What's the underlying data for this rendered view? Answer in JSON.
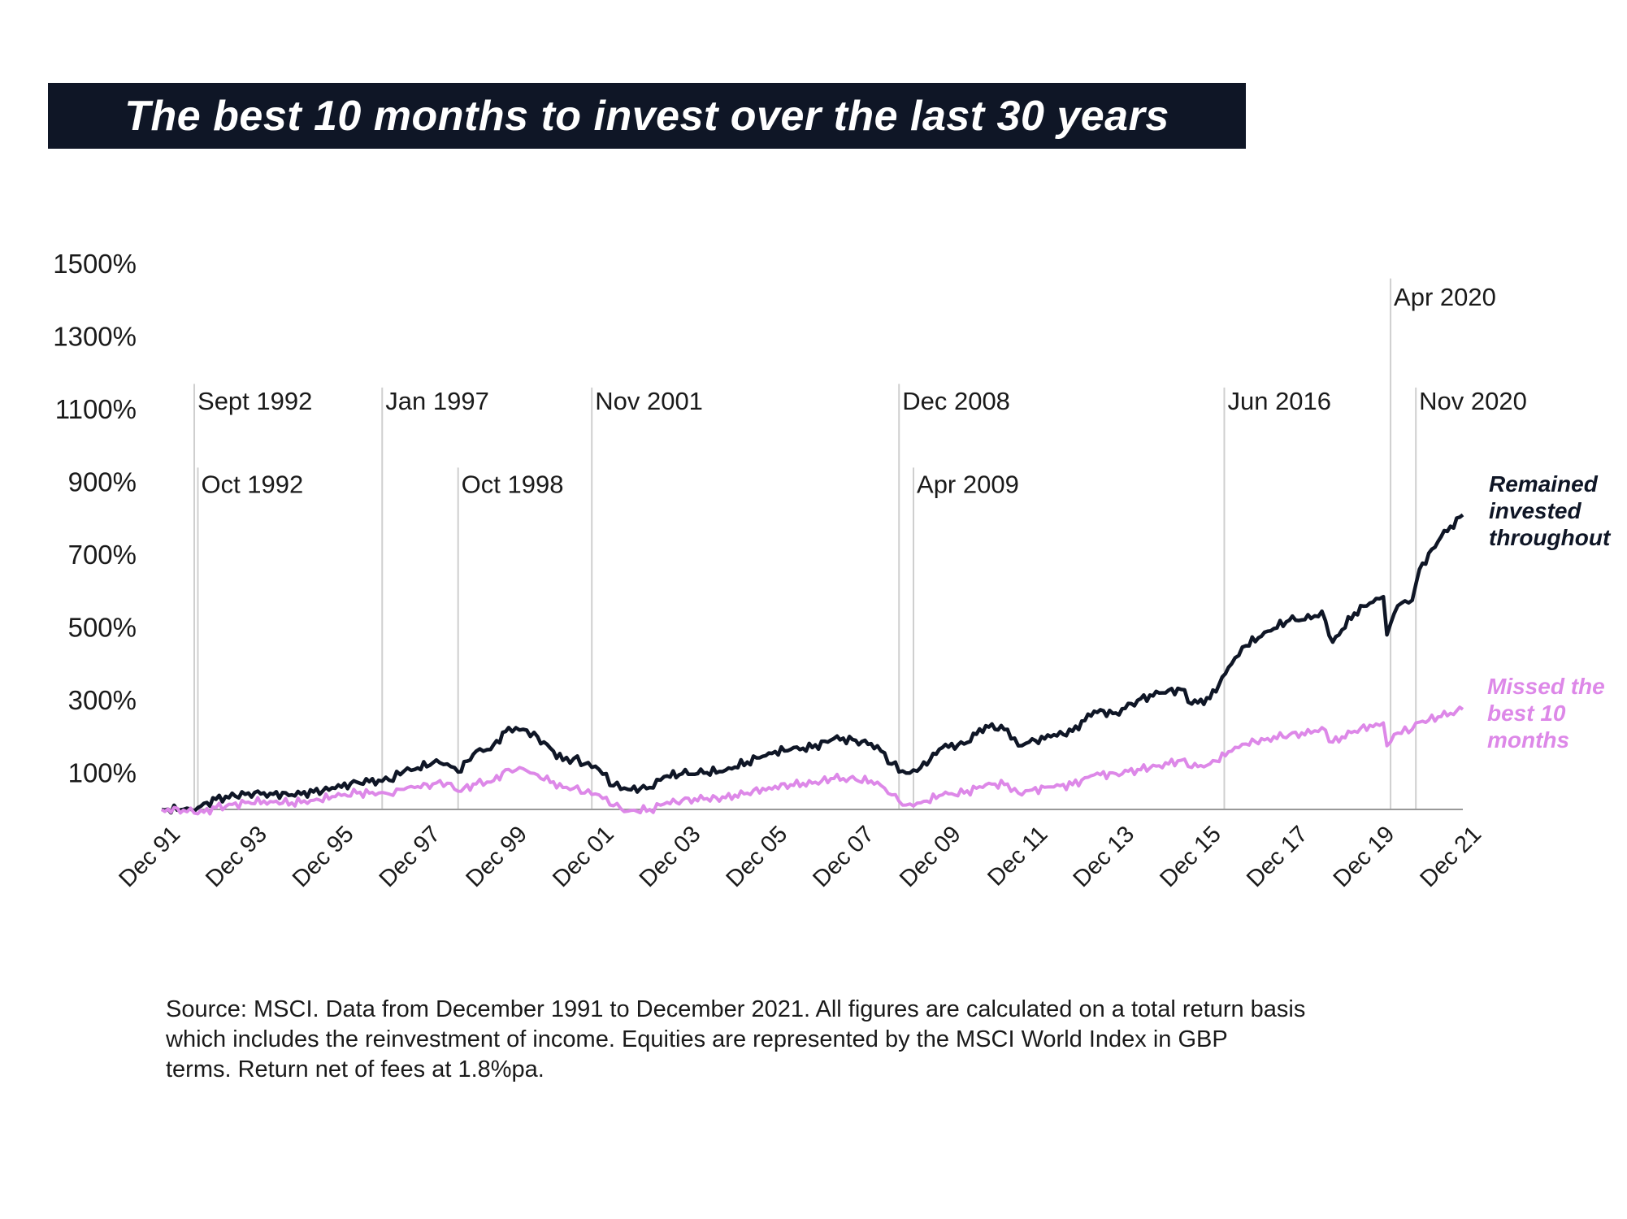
{
  "colors": {
    "title_bg": "#0f1626",
    "title_text": "#ffffff",
    "remained": "#0f1626",
    "missed": "#dd88e8",
    "event_line": "#cfcfcf",
    "axis": "#999999",
    "text": "#1a1a1a"
  },
  "chart_data": {
    "type": "line",
    "title": "The best 10 months to invest over the last 30 years",
    "xlabel": "",
    "ylabel": "",
    "xlim": [
      "1991-12",
      "2021-12"
    ],
    "ylim": [
      0,
      1500
    ],
    "y_tick_values": [
      100,
      300,
      500,
      700,
      900,
      1100,
      1300,
      1500
    ],
    "y_tick_labels": [
      "100%",
      "300%",
      "500%",
      "700%",
      "900%",
      "1100%",
      "1300%",
      "1500%"
    ],
    "x_ticks": [
      {
        "date": "1991-12",
        "label": "Dec 91"
      },
      {
        "date": "1993-12",
        "label": "Dec 93"
      },
      {
        "date": "1995-12",
        "label": "Dec 95"
      },
      {
        "date": "1997-12",
        "label": "Dec 97"
      },
      {
        "date": "1999-12",
        "label": "Dec 99"
      },
      {
        "date": "2001-12",
        "label": "Dec 01"
      },
      {
        "date": "2003-12",
        "label": "Dec 03"
      },
      {
        "date": "2005-12",
        "label": "Dec 05"
      },
      {
        "date": "2007-12",
        "label": "Dec 07"
      },
      {
        "date": "2009-12",
        "label": "Dec 09"
      },
      {
        "date": "2011-12",
        "label": "Dec 11"
      },
      {
        "date": "2013-12",
        "label": "Dec 13"
      },
      {
        "date": "2015-12",
        "label": "Dec 15"
      },
      {
        "date": "2017-12",
        "label": "Dec 17"
      },
      {
        "date": "2019-12",
        "label": "Dec 19"
      },
      {
        "date": "2021-12",
        "label": "Dec 21"
      }
    ],
    "grid": false,
    "legend": "right",
    "annotations": [
      {
        "date": "1992-09",
        "label": "Sept 1992",
        "y_top": 1170,
        "text_y": 1100
      },
      {
        "date": "1992-10",
        "label": "Oct 1992",
        "y_top": 940,
        "text_y": 870
      },
      {
        "date": "1997-01",
        "label": "Jan 1997",
        "y_top": 1160,
        "text_y": 1100
      },
      {
        "date": "1998-10",
        "label": "Oct 1998",
        "y_top": 940,
        "text_y": 870
      },
      {
        "date": "2001-11",
        "label": "Nov 2001",
        "y_top": 1160,
        "text_y": 1100
      },
      {
        "date": "2008-12",
        "label": "Dec 2008",
        "y_top": 1170,
        "text_y": 1100
      },
      {
        "date": "2009-04",
        "label": "Apr 2009",
        "y_top": 940,
        "text_y": 870
      },
      {
        "date": "2016-06",
        "label": "Jun 2016",
        "y_top": 1160,
        "text_y": 1100
      },
      {
        "date": "2020-04",
        "label": "Apr 2020",
        "y_top": 1460,
        "text_y": 1385
      },
      {
        "date": "2020-11",
        "label": "Nov 2020",
        "y_top": 1160,
        "text_y": 1100
      }
    ],
    "series": [
      {
        "name": "Remained invested throughout",
        "color": "#0f1626",
        "points": [
          [
            "1991-12",
            0
          ],
          [
            "1992-06",
            0
          ],
          [
            "1992-09",
            -5
          ],
          [
            "1992-10",
            5
          ],
          [
            "1993-03",
            28
          ],
          [
            "1993-12",
            45
          ],
          [
            "1994-06",
            44
          ],
          [
            "1994-12",
            40
          ],
          [
            "1995-06",
            48
          ],
          [
            "1995-12",
            58
          ],
          [
            "1996-06",
            75
          ],
          [
            "1996-12",
            80
          ],
          [
            "1997-03",
            80
          ],
          [
            "1997-07",
            105
          ],
          [
            "1997-10",
            110
          ],
          [
            "1998-03",
            128
          ],
          [
            "1998-07",
            125
          ],
          [
            "1998-10",
            103
          ],
          [
            "1999-03",
            160
          ],
          [
            "1999-07",
            165
          ],
          [
            "1999-12",
            225
          ],
          [
            "2000-04",
            220
          ],
          [
            "2000-08",
            200
          ],
          [
            "2001-03",
            135
          ],
          [
            "2001-06",
            140
          ],
          [
            "2001-09",
            125
          ],
          [
            "2002-01",
            110
          ],
          [
            "2002-05",
            65
          ],
          [
            "2002-09",
            55
          ],
          [
            "2003-03",
            60
          ],
          [
            "2003-07",
            90
          ],
          [
            "2003-12",
            98
          ],
          [
            "2004-06",
            100
          ],
          [
            "2004-12",
            108
          ],
          [
            "2005-06",
            130
          ],
          [
            "2005-12",
            155
          ],
          [
            "2006-06",
            165
          ],
          [
            "2006-12",
            170
          ],
          [
            "2007-06",
            195
          ],
          [
            "2007-12",
            190
          ],
          [
            "2008-06",
            175
          ],
          [
            "2008-10",
            125
          ],
          [
            "2009-02",
            100
          ],
          [
            "2009-06",
            115
          ],
          [
            "2009-12",
            170
          ],
          [
            "2010-06",
            180
          ],
          [
            "2010-12",
            230
          ],
          [
            "2011-06",
            220
          ],
          [
            "2011-09",
            175
          ],
          [
            "2011-12",
            185
          ],
          [
            "2012-06",
            200
          ],
          [
            "2012-12",
            215
          ],
          [
            "2013-06",
            270
          ],
          [
            "2013-12",
            265
          ],
          [
            "2014-06",
            300
          ],
          [
            "2014-12",
            320
          ],
          [
            "2015-06",
            330
          ],
          [
            "2015-09",
            290
          ],
          [
            "2016-02",
            305
          ],
          [
            "2016-08",
            400
          ],
          [
            "2016-12",
            450
          ],
          [
            "2017-06",
            490
          ],
          [
            "2017-12",
            520
          ],
          [
            "2018-06",
            525
          ],
          [
            "2018-09",
            545
          ],
          [
            "2018-12",
            460
          ],
          [
            "2019-06",
            540
          ],
          [
            "2019-12",
            580
          ],
          [
            "2020-02",
            585
          ],
          [
            "2020-03",
            480
          ],
          [
            "2020-06",
            560
          ],
          [
            "2020-10",
            575
          ],
          [
            "2020-12",
            660
          ],
          [
            "2021-06",
            750
          ],
          [
            "2021-12",
            810
          ]
        ]
      },
      {
        "name": "Missed the best 10 months",
        "color": "#dd88e8",
        "points": [
          [
            "1991-12",
            0
          ],
          [
            "1992-06",
            -2
          ],
          [
            "1992-09",
            -10
          ],
          [
            "1992-10",
            -12
          ],
          [
            "1993-03",
            5
          ],
          [
            "1993-12",
            20
          ],
          [
            "1994-06",
            22
          ],
          [
            "1994-12",
            18
          ],
          [
            "1995-06",
            25
          ],
          [
            "1995-12",
            35
          ],
          [
            "1996-06",
            45
          ],
          [
            "1996-12",
            45
          ],
          [
            "1997-03",
            42
          ],
          [
            "1997-07",
            55
          ],
          [
            "1997-10",
            60
          ],
          [
            "1998-03",
            70
          ],
          [
            "1998-07",
            72
          ],
          [
            "1998-10",
            50
          ],
          [
            "1999-03",
            70
          ],
          [
            "1999-07",
            75
          ],
          [
            "1999-12",
            110
          ],
          [
            "2000-04",
            112
          ],
          [
            "2000-08",
            95
          ],
          [
            "2001-03",
            60
          ],
          [
            "2001-06",
            58
          ],
          [
            "2001-09",
            45
          ],
          [
            "2002-01",
            40
          ],
          [
            "2002-05",
            10
          ],
          [
            "2002-09",
            -5
          ],
          [
            "2003-03",
            0
          ],
          [
            "2003-07",
            15
          ],
          [
            "2003-12",
            25
          ],
          [
            "2004-06",
            28
          ],
          [
            "2004-12",
            32
          ],
          [
            "2005-06",
            45
          ],
          [
            "2005-12",
            60
          ],
          [
            "2006-06",
            68
          ],
          [
            "2006-12",
            72
          ],
          [
            "2007-06",
            85
          ],
          [
            "2007-12",
            82
          ],
          [
            "2008-06",
            75
          ],
          [
            "2008-10",
            40
          ],
          [
            "2009-02",
            12
          ],
          [
            "2009-06",
            18
          ],
          [
            "2009-12",
            40
          ],
          [
            "2010-06",
            45
          ],
          [
            "2010-12",
            68
          ],
          [
            "2011-06",
            70
          ],
          [
            "2011-09",
            45
          ],
          [
            "2011-12",
            52
          ],
          [
            "2012-06",
            62
          ],
          [
            "2012-12",
            68
          ],
          [
            "2013-06",
            95
          ],
          [
            "2013-12",
            98
          ],
          [
            "2014-06",
            110
          ],
          [
            "2014-12",
            120
          ],
          [
            "2015-06",
            135
          ],
          [
            "2015-09",
            115
          ],
          [
            "2016-02",
            125
          ],
          [
            "2016-08",
            160
          ],
          [
            "2016-12",
            180
          ],
          [
            "2017-06",
            195
          ],
          [
            "2017-12",
            205
          ],
          [
            "2018-06",
            210
          ],
          [
            "2018-09",
            225
          ],
          [
            "2018-12",
            185
          ],
          [
            "2019-06",
            215
          ],
          [
            "2019-12",
            235
          ],
          [
            "2020-02",
            238
          ],
          [
            "2020-03",
            175
          ],
          [
            "2020-06",
            210
          ],
          [
            "2020-10",
            220
          ],
          [
            "2020-12",
            240
          ],
          [
            "2021-06",
            255
          ],
          [
            "2021-12",
            275
          ]
        ]
      }
    ],
    "series_labels": [
      {
        "lines": [
          "Remained",
          "invested",
          "throughout"
        ],
        "color": "#0f1626"
      },
      {
        "lines": [
          "Missed the",
          "best 10",
          "months"
        ],
        "color": "#dd88e8"
      }
    ]
  },
  "footer": {
    "source_line1": "Source: MSCI. Data from December 1991 to December 2021. All figures are calculated on a total return basis",
    "source_line2": "which includes the reinvestment of income. Equities are represented by the MSCI World Index in GBP",
    "source_line3": "terms. Return net of fees at 1.8%pa."
  }
}
